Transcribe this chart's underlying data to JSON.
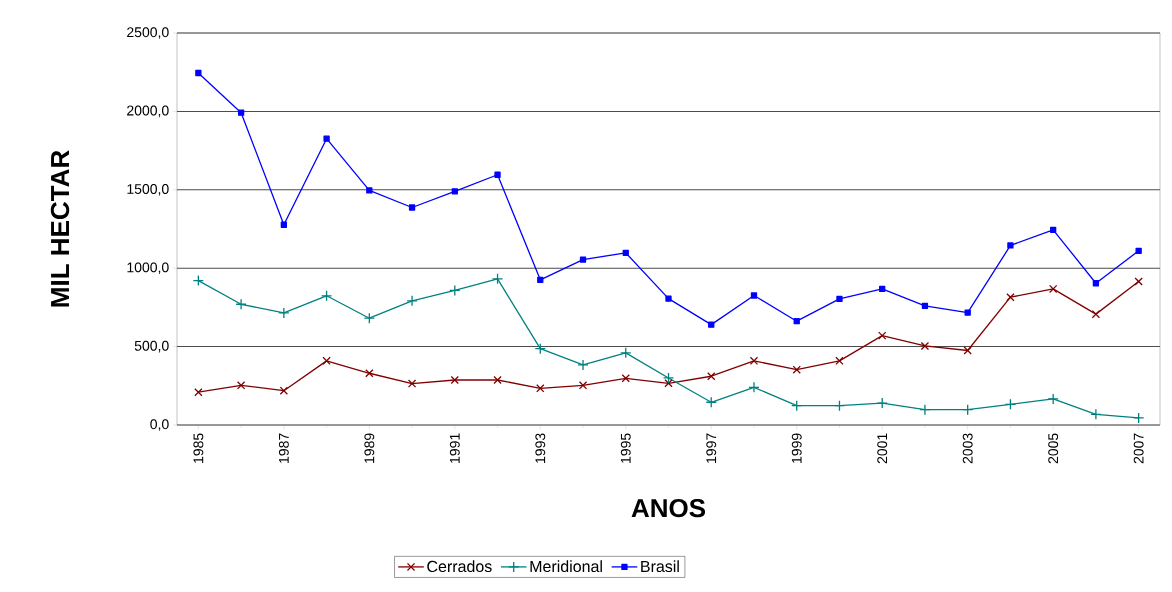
{
  "chart_data": {
    "type": "line",
    "xlabel": "ANOS",
    "ylabel": "MIL HECTAR",
    "x": [
      1985,
      1986,
      1987,
      1988,
      1989,
      1990,
      1991,
      1992,
      1993,
      1994,
      1995,
      1996,
      1997,
      1998,
      1999,
      2000,
      2001,
      2002,
      2003,
      2004,
      2005,
      2006,
      2007
    ],
    "xlim": [
      1984.5,
      2007.5
    ],
    "xticks": [
      1985,
      1987,
      1989,
      1991,
      1993,
      1995,
      1997,
      1999,
      2001,
      2003,
      2005,
      2007
    ],
    "ylim": [
      0,
      2500
    ],
    "yticks": [
      {
        "value": 0,
        "label": "0,0"
      },
      {
        "value": 500,
        "label": "500,0"
      },
      {
        "value": 1000,
        "label": "1000,0"
      },
      {
        "value": 1500,
        "label": "1500,0"
      },
      {
        "value": 2000,
        "label": "2000,0"
      },
      {
        "value": 2500,
        "label": "2500,0"
      }
    ],
    "grid": "y",
    "legend": "bottom",
    "line_style": "solid",
    "series": [
      {
        "name": "Cerrados",
        "color": "#800000",
        "marker": "cross",
        "values": [
          209,
          253,
          219,
          409,
          330,
          264,
          287,
          287,
          234,
          253,
          298,
          266,
          311,
          409,
          353,
          409,
          570,
          504,
          475,
          815,
          868,
          707,
          915
        ]
      },
      {
        "name": "Meridional",
        "color": "#008080",
        "marker": "plus",
        "values": [
          921,
          770,
          715,
          824,
          681,
          792,
          858,
          932,
          487,
          383,
          460,
          300,
          145,
          240,
          123,
          123,
          140,
          98,
          98,
          132,
          166,
          68,
          45
        ]
      },
      {
        "name": "Brasil",
        "color": "#0000ff",
        "marker": "square",
        "values": [
          2245,
          1992,
          1277,
          1826,
          1496,
          1387,
          1490,
          1596,
          926,
          1055,
          1098,
          806,
          640,
          826,
          662,
          804,
          868,
          760,
          717,
          1145,
          1245,
          904,
          1111
        ]
      }
    ]
  }
}
